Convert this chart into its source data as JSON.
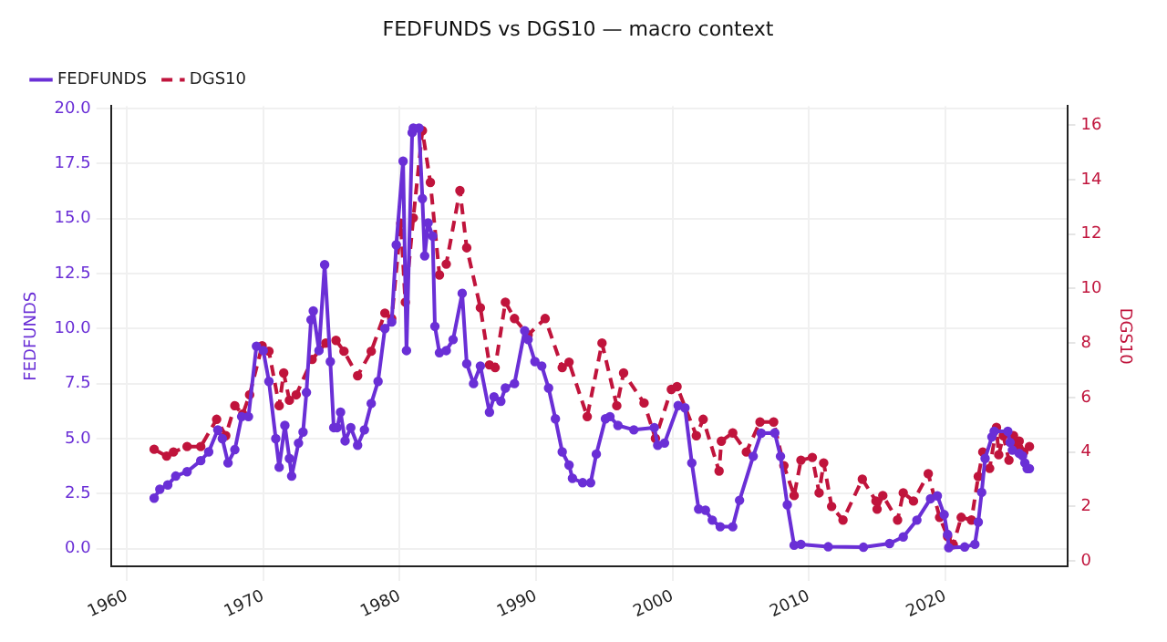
{
  "chart_data": {
    "type": "line",
    "title": "FEDFUNDS vs DGS10 — macro context",
    "ylabel": "FEDFUNDS",
    "y2label": "DGS10",
    "xlim": [
      "1958-11",
      "2029-01"
    ],
    "xticks": [
      "1960",
      "1970",
      "1980",
      "1990",
      "2000",
      "2010",
      "2020"
    ],
    "ylim": [
      -0.8,
      20.1
    ],
    "yticks": [
      {
        "value": 0,
        "label": "0.0"
      },
      2.5,
      {
        "value": 5,
        "label": "5.0"
      },
      7.5,
      {
        "value": 10,
        "label": "10.0"
      },
      12.5,
      {
        "value": 15,
        "label": "15.0"
      },
      17.5,
      {
        "value": 20,
        "label": "20.0"
      }
    ],
    "y2lim": [
      -0.2,
      16.7
    ],
    "y2ticks": [
      0,
      2,
      4,
      6,
      8,
      10,
      12,
      14,
      16
    ],
    "grid": true,
    "legend": "top left",
    "marker": "circle",
    "series": [
      {
        "name": "FEDFUNDS",
        "color": "#6a2fd6",
        "line_style": "solid",
        "x": [
          "1962-01",
          "1962-06",
          "1963-01",
          "1963-08",
          "1964-06",
          "1965-06",
          "1966-01",
          "1966-09",
          "1967-01",
          "1967-06",
          "1967-12",
          "1968-06",
          "1968-12",
          "1969-07",
          "1970-01",
          "1970-06",
          "1970-12",
          "1971-03",
          "1971-08",
          "1971-12",
          "1972-02",
          "1972-08",
          "1972-12",
          "1973-03",
          "1973-07",
          "1973-09",
          "1974-02",
          "1974-07",
          "1974-12",
          "1975-03",
          "1975-06",
          "1975-09",
          "1976-01",
          "1976-06",
          "1976-12",
          "1977-06",
          "1977-12",
          "1978-06",
          "1978-12",
          "1979-06",
          "1979-10",
          "1980-04",
          "1980-07",
          "1980-12",
          "1981-01",
          "1981-06",
          "1981-09",
          "1981-11",
          "1982-02",
          "1982-06",
          "1982-08",
          "1982-12",
          "1983-06",
          "1983-12",
          "1984-08",
          "1984-12",
          "1985-06",
          "1985-12",
          "1986-08",
          "1986-12",
          "1987-06",
          "1987-10",
          "1988-06",
          "1989-03",
          "1989-06",
          "1989-12",
          "1990-06",
          "1990-12",
          "1991-06",
          "1991-12",
          "1992-06",
          "1992-09",
          "1993-06",
          "1994-01",
          "1994-06",
          "1995-02",
          "1995-06",
          "1996-01",
          "1997-03",
          "1998-09",
          "1998-12",
          "1999-06",
          "2000-06",
          "2000-12",
          "2001-06",
          "2001-12",
          "2002-06",
          "2002-12",
          "2003-07",
          "2004-06",
          "2004-12",
          "2005-12",
          "2006-07",
          "2007-07",
          "2007-12",
          "2008-06",
          "2008-12",
          "2009-06",
          "2011-06",
          "2014-01",
          "2015-12",
          "2016-12",
          "2017-12",
          "2018-12",
          "2019-06",
          "2019-12",
          "2020-03",
          "2020-04",
          "2021-06",
          "2022-03",
          "2022-06",
          "2022-09",
          "2022-12",
          "2023-06",
          "2023-08",
          "2024-08",
          "2024-10",
          "2024-12",
          "2025-06",
          "2025-09",
          "2025-11",
          "2026-01",
          "2026-03"
        ],
        "values": [
          2.3,
          2.7,
          2.9,
          3.3,
          3.5,
          4.0,
          4.4,
          5.4,
          5.0,
          3.9,
          4.5,
          6.0,
          6.0,
          9.2,
          9.0,
          7.6,
          5.0,
          3.7,
          5.6,
          4.1,
          3.3,
          4.8,
          5.3,
          7.1,
          10.4,
          10.8,
          9.0,
          12.9,
          8.5,
          5.5,
          5.5,
          6.2,
          4.9,
          5.5,
          4.7,
          5.4,
          6.6,
          7.6,
          10.0,
          10.3,
          13.8,
          17.6,
          9.0,
          18.9,
          19.1,
          19.1,
          15.9,
          13.3,
          14.8,
          14.2,
          10.1,
          8.9,
          9.0,
          9.5,
          11.6,
          8.4,
          7.5,
          8.3,
          6.2,
          6.9,
          6.7,
          7.3,
          7.5,
          9.9,
          9.5,
          8.5,
          8.3,
          7.3,
          5.9,
          4.4,
          3.8,
          3.2,
          3.0,
          3.0,
          4.3,
          5.9,
          6.0,
          5.6,
          5.4,
          5.5,
          4.7,
          4.8,
          6.5,
          6.4,
          3.9,
          1.8,
          1.75,
          1.3,
          1.0,
          1.0,
          2.2,
          4.2,
          5.25,
          5.26,
          4.2,
          2.0,
          0.16,
          0.2,
          0.09,
          0.07,
          0.24,
          0.54,
          1.3,
          2.27,
          2.4,
          1.55,
          0.65,
          0.05,
          0.08,
          0.2,
          1.21,
          2.56,
          4.1,
          5.08,
          5.33,
          5.33,
          4.83,
          4.48,
          4.33,
          4.22,
          3.9,
          3.64,
          3.64
        ]
      },
      {
        "name": "DGS10",
        "color": "#c0143c",
        "line_style": "dashed",
        "axis": "y2",
        "x": [
          "1962-01",
          "1962-12",
          "1963-06",
          "1964-06",
          "1965-06",
          "1966-08",
          "1967-04",
          "1967-12",
          "1968-07",
          "1969-01",
          "1969-12",
          "1970-06",
          "1971-03",
          "1971-07",
          "1971-12",
          "1972-06",
          "1973-08",
          "1974-08",
          "1975-05",
          "1975-12",
          "1976-12",
          "1977-12",
          "1978-12",
          "1979-06",
          "1980-02",
          "1980-06",
          "1981-01",
          "1981-09",
          "1982-04",
          "1982-12",
          "1983-06",
          "1984-06",
          "1984-12",
          "1985-12",
          "1986-08",
          "1987-01",
          "1987-10",
          "1988-06",
          "1989-06",
          "1990-09",
          "1991-12",
          "1992-06",
          "1993-10",
          "1994-11",
          "1995-12",
          "1996-06",
          "1997-12",
          "1998-10",
          "1999-12",
          "2000-05",
          "2001-10",
          "2002-04",
          "2003-06",
          "2003-08",
          "2004-06",
          "2005-06",
          "2006-06",
          "2007-06",
          "2008-03",
          "2008-12",
          "2009-06",
          "2010-04",
          "2010-10",
          "2011-02",
          "2011-09",
          "2012-07",
          "2013-12",
          "2014-12",
          "2015-01",
          "2015-06",
          "2016-07",
          "2016-12",
          "2017-09",
          "2018-10",
          "2019-08",
          "2020-03",
          "2020-08",
          "2021-03",
          "2021-12",
          "2022-06",
          "2022-10",
          "2023-04",
          "2023-10",
          "2023-12",
          "2024-04",
          "2024-09",
          "2025-01",
          "2025-04",
          "2025-06",
          "2025-10",
          "2026-03"
        ],
        "values": [
          4.1,
          3.85,
          4.0,
          4.2,
          4.2,
          5.2,
          4.6,
          5.7,
          5.4,
          6.1,
          7.9,
          7.7,
          5.7,
          6.9,
          5.9,
          6.1,
          7.4,
          8.0,
          8.1,
          7.7,
          6.8,
          7.7,
          9.1,
          8.9,
          12.4,
          9.5,
          12.6,
          15.8,
          13.9,
          10.5,
          10.9,
          13.6,
          11.5,
          9.3,
          7.2,
          7.1,
          9.5,
          8.9,
          8.3,
          8.9,
          7.1,
          7.3,
          5.3,
          8.0,
          5.7,
          6.9,
          5.8,
          4.5,
          6.3,
          6.4,
          4.6,
          5.2,
          3.3,
          4.4,
          4.7,
          4.0,
          5.1,
          5.1,
          3.5,
          2.4,
          3.7,
          3.8,
          2.5,
          3.6,
          2.0,
          1.5,
          3.0,
          2.2,
          1.9,
          2.4,
          1.5,
          2.5,
          2.2,
          3.2,
          1.6,
          0.9,
          0.6,
          1.6,
          1.5,
          3.1,
          4.0,
          3.4,
          4.9,
          3.9,
          4.6,
          3.7,
          4.6,
          4.2,
          4.4,
          4.0,
          4.2
        ]
      }
    ]
  }
}
